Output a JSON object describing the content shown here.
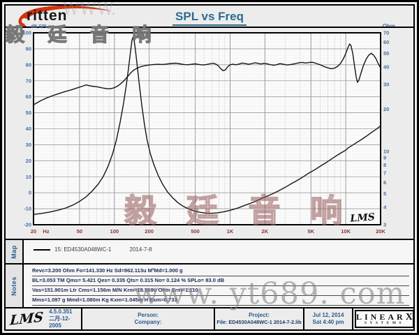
{
  "brand": {
    "text": "ritten",
    "subtitle": "毅 廷 音 响"
  },
  "header": {
    "title": "SPL vs Freq"
  },
  "colors": {
    "title": "#2e6b8e",
    "x_tick": "#8b3434",
    "y_tick": "#4a6e9e",
    "curve": "#141414",
    "logo_red": "#d3320f"
  },
  "chart_data": {
    "type": "line",
    "title": "SPL vs Freq",
    "x_axis": {
      "unit": "Hz",
      "scale": "log",
      "min": 20,
      "max": 20000,
      "tick_values": [
        20,
        50,
        100,
        200,
        500,
        1000,
        2000,
        5000,
        10000,
        20000
      ],
      "tick_labels": [
        "20",
        "50",
        "100",
        "200",
        "500",
        "1K",
        "2K",
        "5K",
        "10K",
        "20K"
      ]
    },
    "y_left": {
      "label": "dB SPL",
      "min": -20,
      "max": 100,
      "ticks": [
        100,
        90,
        80,
        70,
        60,
        50,
        40,
        30,
        20,
        10,
        0,
        -10,
        -20
      ]
    },
    "y_right": {
      "label": "Ohm",
      "scale": "log",
      "min": 3,
      "max": 70,
      "ticks": [
        70,
        60,
        50,
        40,
        30,
        20,
        10,
        9,
        8,
        7,
        6,
        5,
        4,
        3
      ]
    },
    "inplot_logo": "LMS",
    "series": [
      {
        "name": "SPL",
        "axis": "left",
        "points": [
          [
            20,
            55
          ],
          [
            23,
            57.5
          ],
          [
            26,
            59.3
          ],
          [
            30,
            61
          ],
          [
            34,
            62.3
          ],
          [
            38,
            63.4
          ],
          [
            43,
            64.5
          ],
          [
            48,
            65.6
          ],
          [
            53,
            66.6
          ],
          [
            57,
            67.4
          ],
          [
            60,
            67.0
          ],
          [
            64,
            66.6
          ],
          [
            70,
            66.3
          ],
          [
            76,
            65.8
          ],
          [
            82,
            65.3
          ],
          [
            88,
            65.0
          ],
          [
            94,
            65.1
          ],
          [
            100,
            65.7
          ],
          [
            106,
            66.6
          ],
          [
            112,
            67.8
          ],
          [
            118,
            69.3
          ],
          [
            125,
            71.2
          ],
          [
            132,
            73.2
          ],
          [
            140,
            75.3
          ],
          [
            148,
            76.8
          ],
          [
            158,
            78.0
          ],
          [
            170,
            78.9
          ],
          [
            185,
            79.5
          ],
          [
            200,
            79.9
          ],
          [
            220,
            80.2
          ],
          [
            240,
            80.3
          ],
          [
            260,
            80.2
          ],
          [
            285,
            80.5
          ],
          [
            310,
            80.8
          ],
          [
            340,
            81.0
          ],
          [
            370,
            80.6
          ],
          [
            400,
            80.2
          ],
          [
            430,
            80.0
          ],
          [
            465,
            80.3
          ],
          [
            500,
            80.6
          ],
          [
            540,
            80.2
          ],
          [
            580,
            79.9
          ],
          [
            620,
            80.1
          ],
          [
            665,
            80.6
          ],
          [
            710,
            81.0
          ],
          [
            750,
            80.5
          ],
          [
            790,
            79.4
          ],
          [
            830,
            77.6
          ],
          [
            870,
            76.3
          ],
          [
            910,
            76.8
          ],
          [
            950,
            78.6
          ],
          [
            1000,
            80.0
          ],
          [
            1060,
            80.4
          ],
          [
            1120,
            80.0
          ],
          [
            1200,
            80.5
          ],
          [
            1280,
            81.1
          ],
          [
            1360,
            80.7
          ],
          [
            1450,
            80.3
          ],
          [
            1550,
            80.8
          ],
          [
            1650,
            81.3
          ],
          [
            1750,
            80.9
          ],
          [
            1850,
            80.5
          ],
          [
            1950,
            80.9
          ],
          [
            2100,
            80.6
          ],
          [
            2250,
            80.0
          ],
          [
            2400,
            79.7
          ],
          [
            2550,
            80.2
          ],
          [
            2700,
            80.7
          ],
          [
            2900,
            80.3
          ],
          [
            3100,
            79.9
          ],
          [
            3350,
            80.2
          ],
          [
            3600,
            80.6
          ],
          [
            3900,
            81.2
          ],
          [
            4200,
            81.5
          ],
          [
            4500,
            81.1
          ],
          [
            4800,
            81.4
          ],
          [
            5100,
            81.6
          ],
          [
            5400,
            81.2
          ],
          [
            5700,
            80.6
          ],
          [
            6100,
            79.8
          ],
          [
            6500,
            78.9
          ],
          [
            7000,
            78.1
          ],
          [
            7500,
            77.5
          ],
          [
            8000,
            77.9
          ],
          [
            8500,
            79.0
          ],
          [
            9000,
            80.8
          ],
          [
            9500,
            83.5
          ],
          [
            10000,
            87.0
          ],
          [
            10400,
            90.5
          ],
          [
            10800,
            93.0
          ],
          [
            11100,
            92.0
          ],
          [
            11500,
            87.0
          ],
          [
            11900,
            79.5
          ],
          [
            12300,
            72.5
          ],
          [
            12600,
            69.0
          ],
          [
            13000,
            70.5
          ],
          [
            13500,
            74.5
          ],
          [
            14200,
            79.5
          ],
          [
            15000,
            83.5
          ],
          [
            15800,
            86.0
          ],
          [
            16600,
            87.2
          ],
          [
            17400,
            86.0
          ],
          [
            18200,
            84.0
          ],
          [
            19000,
            81.0
          ],
          [
            20000,
            78.0
          ]
        ]
      },
      {
        "name": "Impedance",
        "axis": "right",
        "points": [
          [
            20,
            3.55
          ],
          [
            24,
            3.62
          ],
          [
            28,
            3.7
          ],
          [
            33,
            3.82
          ],
          [
            38,
            3.95
          ],
          [
            44,
            4.15
          ],
          [
            50,
            4.4
          ],
          [
            57,
            4.75
          ],
          [
            64,
            5.2
          ],
          [
            72,
            5.8
          ],
          [
            80,
            6.6
          ],
          [
            88,
            7.8
          ],
          [
            96,
            9.5
          ],
          [
            104,
            12
          ],
          [
            112,
            16
          ],
          [
            120,
            22
          ],
          [
            127,
            30
          ],
          [
            133,
            40
          ],
          [
            138,
            52
          ],
          [
            142,
            62
          ],
          [
            145,
            65
          ],
          [
            148,
            62
          ],
          [
            152,
            53
          ],
          [
            158,
            40
          ],
          [
            165,
            29
          ],
          [
            173,
            21
          ],
          [
            182,
            15.5
          ],
          [
            192,
            12
          ],
          [
            205,
            9.6
          ],
          [
            220,
            8.0
          ],
          [
            240,
            6.7
          ],
          [
            262,
            5.8
          ],
          [
            290,
            5.1
          ],
          [
            320,
            4.65
          ],
          [
            355,
            4.3
          ],
          [
            395,
            4.05
          ],
          [
            440,
            3.88
          ],
          [
            490,
            3.76
          ],
          [
            550,
            3.68
          ],
          [
            620,
            3.63
          ],
          [
            700,
            3.62
          ],
          [
            780,
            3.65
          ],
          [
            870,
            3.7
          ],
          [
            960,
            3.77
          ],
          [
            1060,
            3.85
          ],
          [
            1180,
            3.96
          ],
          [
            1320,
            4.1
          ],
          [
            1480,
            4.25
          ],
          [
            1650,
            4.4
          ],
          [
            1850,
            4.6
          ],
          [
            2100,
            4.8
          ],
          [
            2350,
            5.0
          ],
          [
            2650,
            5.25
          ],
          [
            3000,
            5.55
          ],
          [
            3400,
            5.9
          ],
          [
            3800,
            6.2
          ],
          [
            4300,
            6.6
          ],
          [
            4800,
            7.0
          ],
          [
            5400,
            7.4
          ],
          [
            6100,
            7.9
          ],
          [
            6900,
            8.4
          ],
          [
            7800,
            9.0
          ],
          [
            8800,
            9.6
          ],
          [
            9600,
            10.0
          ],
          [
            10000,
            10.2
          ],
          [
            10500,
            10.6
          ],
          [
            11500,
            11.1
          ],
          [
            12500,
            11.6
          ],
          [
            13800,
            12.2
          ],
          [
            15200,
            12.9
          ],
          [
            16800,
            13.7
          ],
          [
            18400,
            14.4
          ],
          [
            20000,
            15.2
          ]
        ]
      }
    ]
  },
  "map": {
    "label": "Map",
    "legend_text": "15: ED4530A048WC-1",
    "legend_date": "2014-7-8"
  },
  "notes": {
    "label": "Notes",
    "lines": [
      "Revc=3.200 Ohm  Fo=141.330 Hz  Sd=962.113u M²Md=1.000 g",
      "BL=3.053 TM  Qms= 5.421  Qes= 0.335  Qts= 0.315  No= 0.124 %  SPLo= 83.0 dB",
      "Vas=151.901m Ltr  Cms=1.156m M/N  Krm=18.569u Ohm  Erm=1.110",
      "Mms=1.097 g  Mmd=1.080m Kg  Kxm=1.045m H  Exm=0.733"
    ]
  },
  "footer": {
    "lms_logo": "LMS",
    "version": "4.5.0.351",
    "version_date": "二月-12-2005",
    "person_label": "Person:",
    "company_label": "Company:",
    "project_label": "Project:",
    "file_text": "File: ED4530A048WC-1   2014-7-2.lib",
    "date": "Jul 12, 2014",
    "time": "Sat  4:40 pm",
    "linearx_main": "LINEAR",
    "linearx_x": "X",
    "linearx_sub": "SYSTEMS"
  },
  "watermarks": {
    "chinese_stamp": "毅 廷 音 响",
    "url": "www. yt689. com",
    "top": "WWW."
  }
}
